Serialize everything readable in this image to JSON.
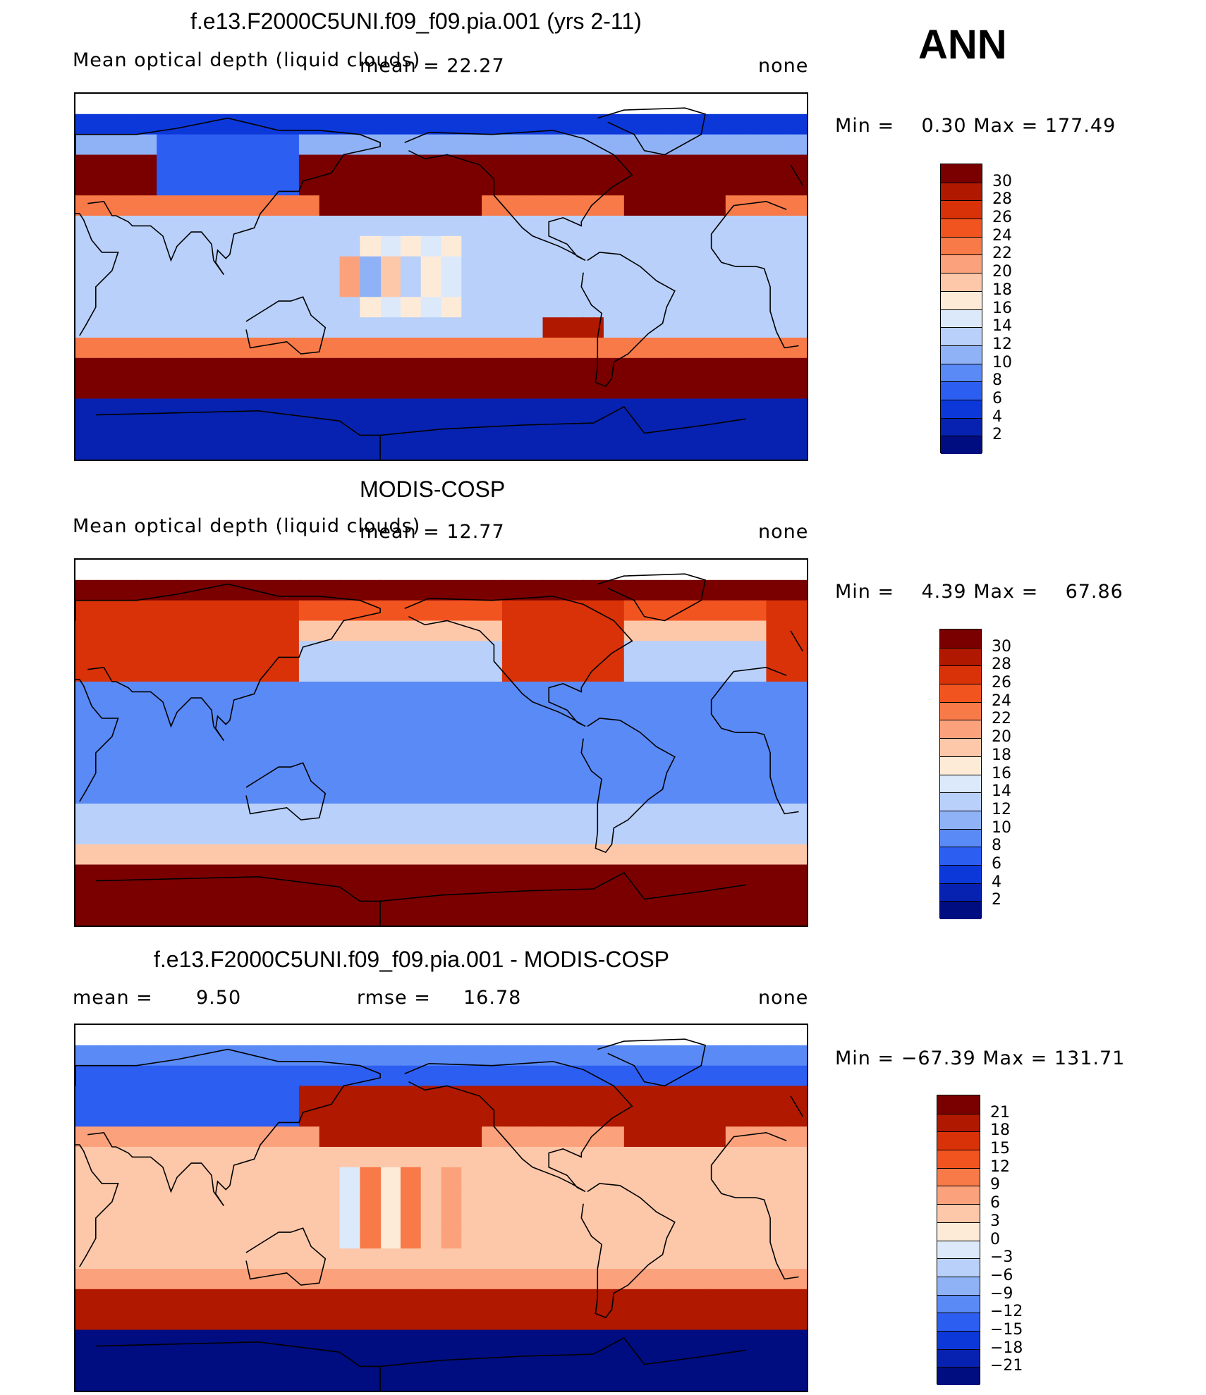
{
  "season": "ANN",
  "panels": [
    {
      "title": "f.e13.F2000C5UNI.f09_f09.pia.001 (yrs 2-11)",
      "variable": "Mean optical depth (liquid clouds)",
      "mean_text": "mean = 22.27",
      "units": "none",
      "min_label": "Min =",
      "min_value": "0.30",
      "max_label": "Max =",
      "max_value": "177.49",
      "levels": [
        "30",
        "28",
        "26",
        "24",
        "22",
        "20",
        "18",
        "16",
        "14",
        "12",
        "10",
        "8",
        "6",
        "4",
        "2"
      ],
      "colors": [
        "#7a0000",
        "#b01800",
        "#d93208",
        "#f25420",
        "#f87a48",
        "#fba27c",
        "#fdc8aa",
        "#fdebd8",
        "#dbe9fb",
        "#b8d0fa",
        "#8fb2f7",
        "#5a8af6",
        "#2c5ef2",
        "#0c38da",
        "#0722b0",
        "#000d80"
      ],
      "field": "model"
    },
    {
      "title": "MODIS-COSP",
      "variable": "Mean optical depth (liquid clouds)",
      "mean_text": "mean = 12.77",
      "units": "none",
      "min_label": "Min =",
      "min_value": "4.39",
      "max_label": "Max =",
      "max_value": "67.86",
      "levels": [
        "30",
        "28",
        "26",
        "24",
        "22",
        "20",
        "18",
        "16",
        "14",
        "12",
        "10",
        "8",
        "6",
        "4",
        "2"
      ],
      "colors": [
        "#7a0000",
        "#b01800",
        "#d93208",
        "#f25420",
        "#f87a48",
        "#fba27c",
        "#fdc8aa",
        "#fdebd8",
        "#dbe9fb",
        "#b8d0fa",
        "#8fb2f7",
        "#5a8af6",
        "#2c5ef2",
        "#0c38da",
        "#0722b0",
        "#000d80"
      ],
      "field": "obs"
    },
    {
      "title": "f.e13.F2000C5UNI.f09_f09.pia.001 - MODIS-COSP",
      "mean_label": "mean =",
      "mean_value": "9.50",
      "rmse_label": "rmse =",
      "rmse_value": "16.78",
      "units": "none",
      "min_label": "Min =",
      "min_value": "−67.39",
      "max_label": "Max =",
      "max_value": "131.71",
      "levels": [
        "21",
        "18",
        "15",
        "12",
        "9",
        "6",
        "3",
        "0",
        "−3",
        "−6",
        "−9",
        "−12",
        "−15",
        "−18",
        "−21"
      ],
      "colors": [
        "#7a0000",
        "#b01800",
        "#d93208",
        "#f25420",
        "#f87a48",
        "#fba27c",
        "#fdc8aa",
        "#fdebd8",
        "#dbe9fb",
        "#b8d0fa",
        "#8fb2f7",
        "#5a8af6",
        "#2c5ef2",
        "#0c38da",
        "#0722b0",
        "#000d80"
      ],
      "field": "diff"
    }
  ],
  "chart_data": [
    {
      "type": "heatmap",
      "title": "f.e13.F2000C5UNI.f09_f09.pia.001 (yrs 2-11)",
      "variable": "Mean optical depth (liquid clouds)",
      "mean": 22.27,
      "min": 0.3,
      "max": 177.49,
      "units": "none",
      "contour_levels": [
        2,
        4,
        6,
        8,
        10,
        12,
        14,
        16,
        18,
        20,
        22,
        24,
        26,
        28,
        30
      ],
      "projection": "cylindrical equidistant, global, centered on Pacific"
    },
    {
      "type": "heatmap",
      "title": "MODIS-COSP",
      "variable": "Mean optical depth (liquid clouds)",
      "mean": 12.77,
      "min": 4.39,
      "max": 67.86,
      "units": "none",
      "contour_levels": [
        2,
        4,
        6,
        8,
        10,
        12,
        14,
        16,
        18,
        20,
        22,
        24,
        26,
        28,
        30
      ]
    },
    {
      "type": "heatmap",
      "title": "f.e13.F2000C5UNI.f09_f09.pia.001 - MODIS-COSP",
      "mean": 9.5,
      "rmse": 16.78,
      "min": -67.39,
      "max": 131.71,
      "units": "none",
      "contour_levels": [
        -21,
        -18,
        -15,
        -12,
        -9,
        -6,
        -3,
        0,
        3,
        6,
        9,
        12,
        15,
        18,
        21
      ]
    }
  ]
}
